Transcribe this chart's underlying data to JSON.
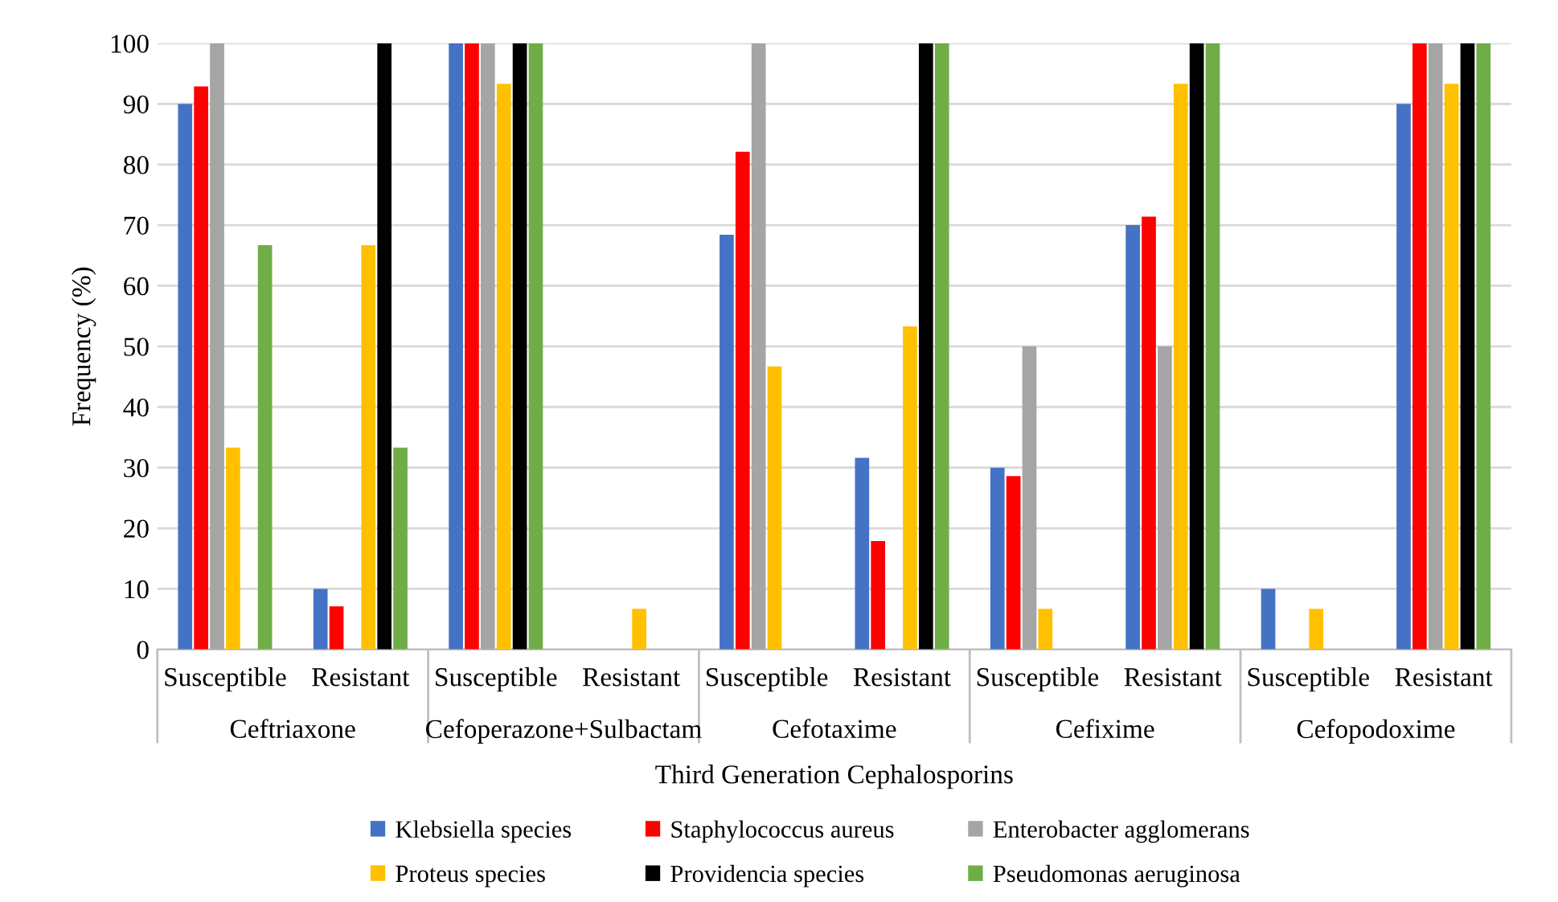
{
  "chart_data": {
    "type": "bar",
    "xlabel": "Third Generation Cephalosporins",
    "ylabel": "Frequency (%)",
    "categories": [
      "Susceptible",
      "Resistant",
      "Susceptible",
      "Resistant",
      "Susceptible",
      "Resistant",
      "Susceptible",
      "Resistant",
      "Susceptible",
      "Resistant"
    ],
    "annotations": [
      "Ceftriaxone",
      "Cefoperazone+Sulbactam",
      "Cefotaxime",
      "Cefixime",
      "Cefopodoxime"
    ],
    "series": [
      {
        "name": "Klebsiella species",
        "color": "#4472c4",
        "values": [
          90,
          10,
          100,
          0,
          68.4,
          31.6,
          30,
          70,
          10,
          90
        ]
      },
      {
        "name": "Staphylococcus aureus",
        "color": "#ff0000",
        "values": [
          92.9,
          7.1,
          100,
          0,
          82.1,
          17.9,
          28.6,
          71.4,
          0,
          100
        ]
      },
      {
        "name": "Enterobacter agglomerans",
        "color": "#a5a5a5",
        "values": [
          100,
          0,
          100,
          0,
          100,
          0,
          50,
          50,
          0,
          100
        ]
      },
      {
        "name": "Proteus species",
        "color": "#ffc000",
        "values": [
          33.3,
          66.7,
          93.3,
          6.7,
          46.7,
          53.3,
          6.7,
          93.3,
          6.7,
          93.3
        ]
      },
      {
        "name": "Providencia species",
        "color": "#000000",
        "values": [
          0,
          100,
          100,
          0,
          0,
          100,
          0,
          100,
          0,
          100
        ]
      },
      {
        "name": "Pseudomonas aeruginosa",
        "color": "#70ad47",
        "values": [
          66.7,
          33.3,
          100,
          0,
          0,
          100,
          0,
          100,
          0,
          100
        ]
      }
    ],
    "ylim": [
      0,
      100
    ],
    "yticks": [
      0,
      10,
      20,
      30,
      40,
      50,
      60,
      70,
      80,
      90,
      100
    ],
    "grid": "y",
    "legend": "bottom"
  }
}
